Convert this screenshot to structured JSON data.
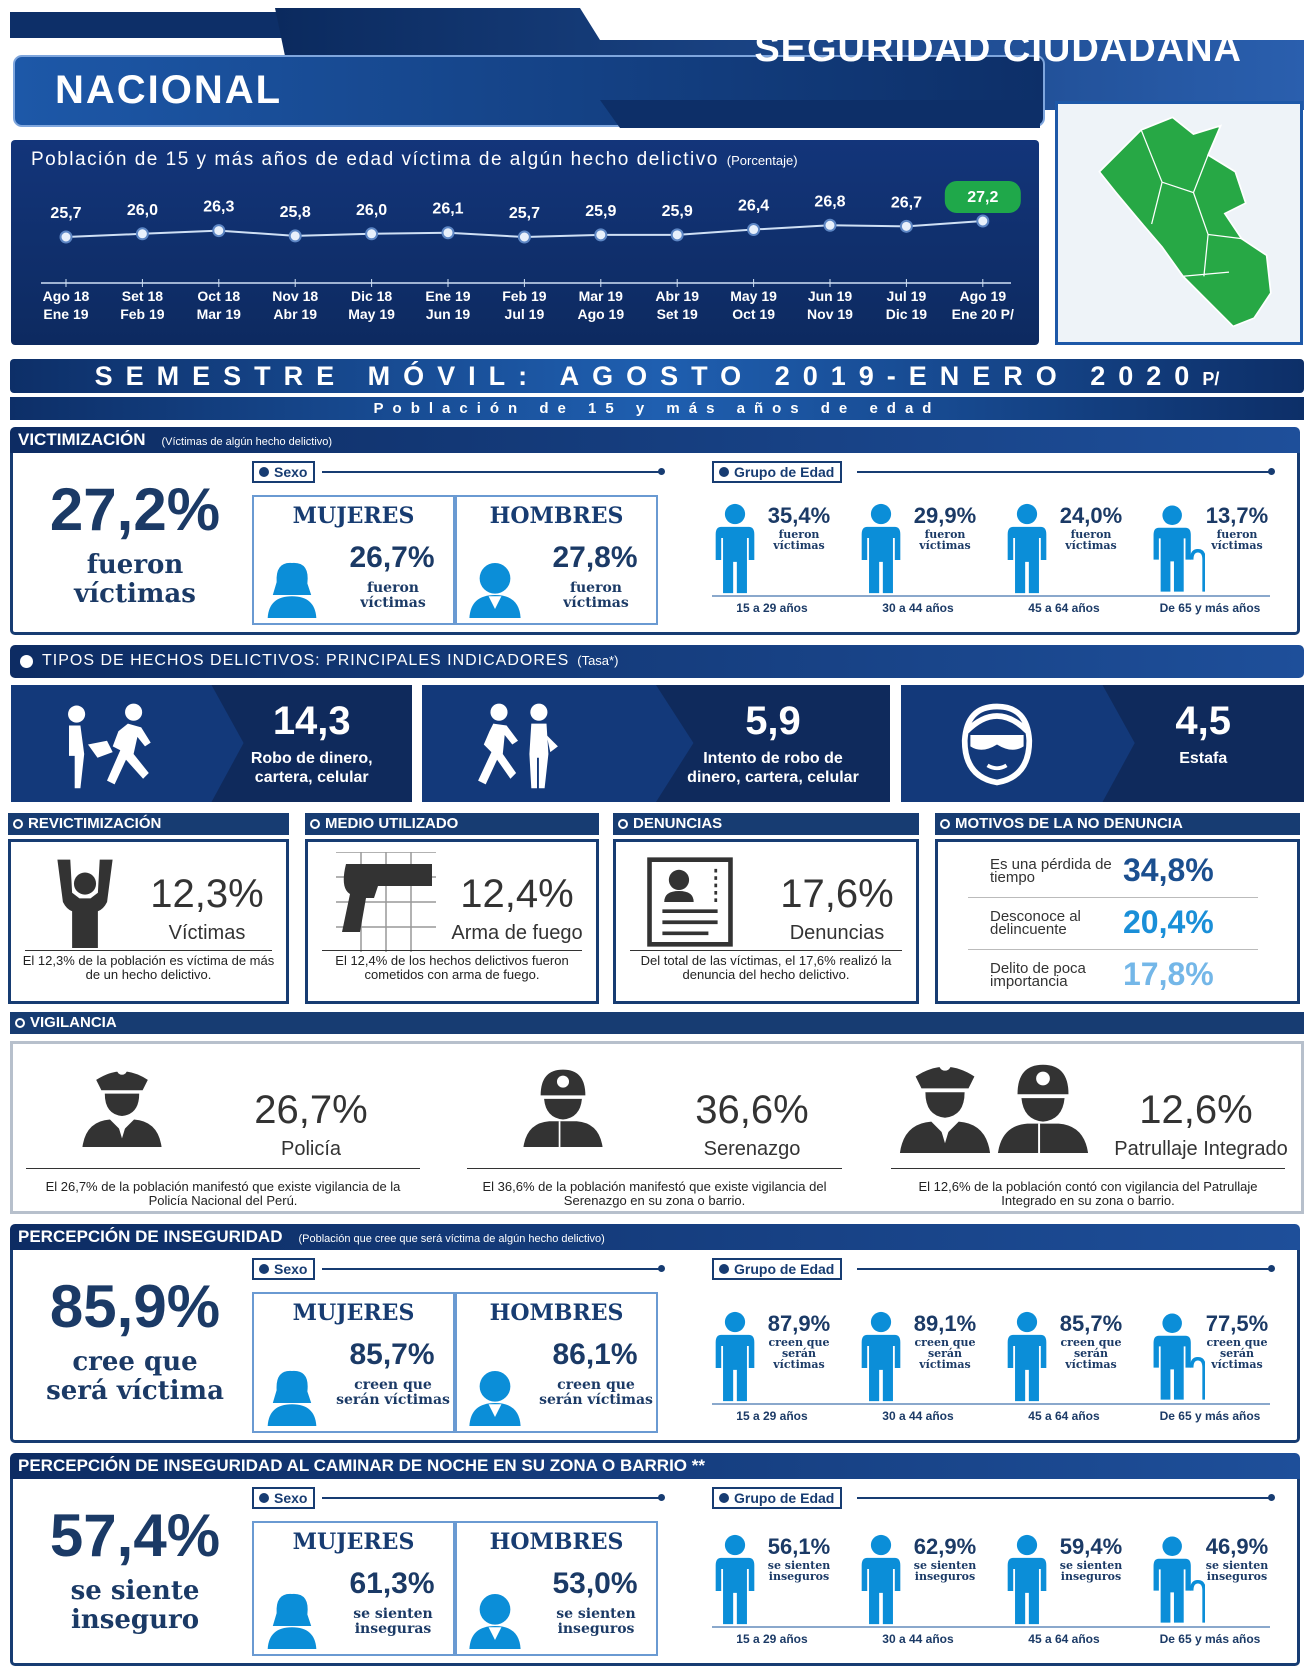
{
  "header": {
    "title": "SEGURIDAD CIUDADANA",
    "region": "NACIONAL"
  },
  "trend": {
    "type": "line",
    "title": "Población de 15 y más años de edad víctima de algún hecho delictivo",
    "unit": "(Porcentaje)",
    "categories": [
      [
        "Ago 18",
        "Ene 19"
      ],
      [
        "Set 18",
        "Feb 19"
      ],
      [
        "Oct 18",
        "Mar 19"
      ],
      [
        "Nov 18",
        "Abr 19"
      ],
      [
        "Dic 18",
        "May 19"
      ],
      [
        "Ene 19",
        "Jun 19"
      ],
      [
        "Feb 19",
        "Jul 19"
      ],
      [
        "Mar 19",
        "Ago 19"
      ],
      [
        "Abr 19",
        "Set 19"
      ],
      [
        "May 19",
        "Oct 19"
      ],
      [
        "Jun 19",
        "Nov 19"
      ],
      [
        "Jul 19",
        "Dic 19"
      ],
      [
        "Ago 19",
        "Ene 20 P/"
      ]
    ],
    "values": [
      25.7,
      26.0,
      26.3,
      25.8,
      26.0,
      26.1,
      25.7,
      25.9,
      25.9,
      26.4,
      26.8,
      26.7,
      27.2
    ],
    "value_labels": [
      "25,7",
      "26,0",
      "26,3",
      "25,8",
      "26,0",
      "26,1",
      "25,7",
      "25,9",
      "25,9",
      "26,4",
      "26,8",
      "26,7",
      "27,2"
    ],
    "highlight_color": "#1fa84a"
  },
  "banner": {
    "period": "SEMESTRE MÓVIL: AGOSTO 2019-ENERO 2020",
    "period_suffix": "P/",
    "population": "Población de 15 y más años de edad"
  },
  "victimizacion": {
    "title": "VICTIMIZACIÓN",
    "note": "(Víctimas de algún hecho delictivo)",
    "total": "27,2%",
    "total_label": "fueron víctimas",
    "sex_title": "Sexo",
    "sex": [
      {
        "name": "MUJERES",
        "value": "26,7%",
        "label": "fueron víctimas"
      },
      {
        "name": "HOMBRES",
        "value": "27,8%",
        "label": "fueron víctimas"
      }
    ],
    "age_title": "Grupo de Edad",
    "ages": [
      {
        "value": "35,4%",
        "label": "fueron víctimas",
        "group": "15 a 29 años"
      },
      {
        "value": "29,9%",
        "label": "fueron víctimas",
        "group": "30 a 44 años"
      },
      {
        "value": "24,0%",
        "label": "fueron víctimas",
        "group": "45 a 64 años"
      },
      {
        "value": "13,7%",
        "label": "fueron víctimas",
        "group": "De 65 y más años"
      }
    ]
  },
  "tipos": {
    "title": "TIPOS DE HECHOS DELICTIVOS: PRINCIPALES INDICADORES",
    "note": "(Tasa*)",
    "items": [
      {
        "value": "14,3",
        "label": "Robo de dinero, cartera, celular"
      },
      {
        "value": "5,9",
        "label": "Intento de robo de dinero, cartera, celular"
      },
      {
        "value": "4,5",
        "label": "Estafa"
      }
    ]
  },
  "indicadores": [
    {
      "title": "REVICTIMIZACIÓN",
      "value": "12,3%",
      "label": "Víctimas",
      "desc": "El 12,3% de la población es víctima de más de un hecho delictivo."
    },
    {
      "title": "MEDIO UTILIZADO",
      "value": "12,4%",
      "label": "Arma de fuego",
      "desc": "El 12,4% de los hechos delictivos fueron cometidos con arma de fuego."
    },
    {
      "title": "DENUNCIAS",
      "value": "17,6%",
      "label": "Denuncias",
      "desc": "Del total de las víctimas, el 17,6% realizó la denuncia del hecho delictivo."
    }
  ],
  "motivos": {
    "title": "MOTIVOS DE LA NO DENUNCIA",
    "items": [
      {
        "label": "Es una pérdida de tiempo",
        "value": "34,8%",
        "color": "#1b4f8f"
      },
      {
        "label": "Desconoce al delincuente",
        "value": "20,4%",
        "color": "#1a8fd8"
      },
      {
        "label": "Delito de poca importancia",
        "value": "17,8%",
        "color": "#74b7e8"
      }
    ]
  },
  "vigilancia": {
    "title": "VIGILANCIA",
    "items": [
      {
        "value": "26,7%",
        "label": "Policía",
        "desc": "El 26,7% de la población manifestó que existe vigilancia de la Policía Nacional del Perú."
      },
      {
        "value": "36,6%",
        "label": "Serenazgo",
        "desc": "El 36,6% de la población manifestó que existe vigilancia del Serenazgo en su zona o barrio."
      },
      {
        "value": "12,6%",
        "label": "Patrullaje Integrado",
        "desc": "El 12,6% de la población contó con vigilancia del Patrullaje Integrado en su zona o barrio."
      }
    ]
  },
  "percepcion": {
    "title": "PERCEPCIÓN DE INSEGURIDAD",
    "note": "(Población que cree que será víctima de algún hecho delictivo)",
    "total": "85,9%",
    "total_label": "cree que será víctima",
    "sex_title": "Sexo",
    "sex": [
      {
        "name": "MUJERES",
        "value": "85,7%",
        "label": "creen que serán víctimas"
      },
      {
        "name": "HOMBRES",
        "value": "86,1%",
        "label": "creen que serán víctimas"
      }
    ],
    "age_title": "Grupo de Edad",
    "ages": [
      {
        "value": "87,9%",
        "label": "creen que serán víctimas",
        "group": "15 a 29 años"
      },
      {
        "value": "89,1%",
        "label": "creen que serán víctimas",
        "group": "30 a 44 años"
      },
      {
        "value": "85,7%",
        "label": "creen que serán víctimas",
        "group": "45 a 64 años"
      },
      {
        "value": "77,5%",
        "label": "creen que serán víctimas",
        "group": "De 65 y más años"
      }
    ]
  },
  "noche": {
    "title": "PERCEPCIÓN DE INSEGURIDAD AL CAMINAR DE NOCHE EN SU ZONA O BARRIO **",
    "total": "57,4%",
    "total_label": "se siente inseguro",
    "sex_title": "Sexo",
    "sex": [
      {
        "name": "MUJERES",
        "value": "61,3%",
        "label": "se sienten inseguras"
      },
      {
        "name": "HOMBRES",
        "value": "53,0%",
        "label": "se sienten inseguros"
      }
    ],
    "age_title": "Grupo de Edad",
    "ages": [
      {
        "value": "56,1%",
        "label": "se sienten inseguros",
        "group": "15 a 29 años"
      },
      {
        "value": "62,9%",
        "label": "se sienten inseguros",
        "group": "30 a 44 años"
      },
      {
        "value": "59,4%",
        "label": "se sienten inseguros",
        "group": "45 a 64 años"
      },
      {
        "value": "46,9%",
        "label": "se sienten inseguros",
        "group": "De 65 y más años"
      }
    ]
  }
}
